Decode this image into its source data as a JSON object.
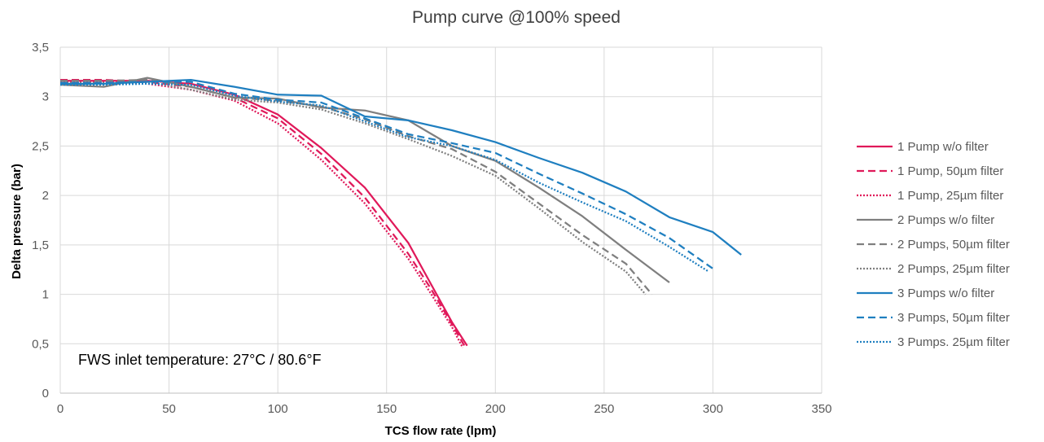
{
  "chart_data": {
    "type": "line",
    "title": "Pump curve @100% speed",
    "xlabel": "TCS flow rate (lpm)",
    "ylabel": "Delta pressure (bar)",
    "xlim": [
      0,
      350
    ],
    "ylim": [
      0,
      3.5
    ],
    "x_ticks": [
      "0",
      "50",
      "100",
      "150",
      "200",
      "250",
      "300",
      "350"
    ],
    "y_ticks": [
      "0",
      "0,5",
      "1",
      "1,5",
      "2",
      "2,5",
      "3",
      "3,5"
    ],
    "grid": true,
    "legend_position": "right",
    "annotation": "FWS inlet temperature: 27°C / 80.6°F",
    "series": [
      {
        "name": "1 Pump w/o filter",
        "color": "#E0195A",
        "style": "solid",
        "points": [
          [
            0,
            3.16
          ],
          [
            20,
            3.16
          ],
          [
            40,
            3.16
          ],
          [
            60,
            3.13
          ],
          [
            80,
            3.02
          ],
          [
            100,
            2.82
          ],
          [
            120,
            2.48
          ],
          [
            140,
            2.08
          ],
          [
            150,
            1.8
          ],
          [
            160,
            1.52
          ],
          [
            170,
            1.12
          ],
          [
            180,
            0.72
          ],
          [
            187,
            0.48
          ]
        ]
      },
      {
        "name": "1 Pump, 50µm filter",
        "color": "#E0195A",
        "style": "dashed",
        "points": [
          [
            0,
            3.17
          ],
          [
            20,
            3.17
          ],
          [
            40,
            3.15
          ],
          [
            60,
            3.1
          ],
          [
            80,
            2.99
          ],
          [
            100,
            2.78
          ],
          [
            120,
            2.42
          ],
          [
            140,
            1.98
          ],
          [
            160,
            1.41
          ],
          [
            170,
            1.07
          ],
          [
            180,
            0.7
          ],
          [
            186,
            0.47
          ]
        ]
      },
      {
        "name": "1 Pump, 25µm filter",
        "color": "#E0195A",
        "style": "dotted",
        "points": [
          [
            0,
            3.15
          ],
          [
            20,
            3.15
          ],
          [
            40,
            3.13
          ],
          [
            60,
            3.07
          ],
          [
            80,
            2.96
          ],
          [
            100,
            2.73
          ],
          [
            120,
            2.36
          ],
          [
            140,
            1.92
          ],
          [
            160,
            1.36
          ],
          [
            170,
            1.02
          ],
          [
            180,
            0.67
          ],
          [
            185,
            0.46
          ]
        ]
      },
      {
        "name": "2 Pumps w/o filter",
        "color": "#7F7F7F",
        "style": "solid",
        "points": [
          [
            0,
            3.12
          ],
          [
            20,
            3.1
          ],
          [
            40,
            3.19
          ],
          [
            60,
            3.1
          ],
          [
            80,
            2.99
          ],
          [
            100,
            2.98
          ],
          [
            120,
            2.89
          ],
          [
            140,
            2.86
          ],
          [
            160,
            2.76
          ],
          [
            180,
            2.5
          ],
          [
            200,
            2.35
          ],
          [
            220,
            2.08
          ],
          [
            240,
            1.79
          ],
          [
            260,
            1.45
          ],
          [
            280,
            1.12
          ]
        ]
      },
      {
        "name": "2 Pumps, 50µm filter",
        "color": "#7F7F7F",
        "style": "dashed",
        "points": [
          [
            0,
            3.16
          ],
          [
            20,
            3.16
          ],
          [
            40,
            3.17
          ],
          [
            60,
            3.1
          ],
          [
            80,
            2.99
          ],
          [
            100,
            2.96
          ],
          [
            120,
            2.9
          ],
          [
            140,
            2.77
          ],
          [
            160,
            2.6
          ],
          [
            180,
            2.47
          ],
          [
            200,
            2.24
          ],
          [
            220,
            1.92
          ],
          [
            240,
            1.6
          ],
          [
            260,
            1.31
          ],
          [
            272,
            1.0
          ]
        ]
      },
      {
        "name": "2 Pumps, 25µm filter",
        "color": "#7F7F7F",
        "style": "dotted",
        "points": [
          [
            0,
            3.14
          ],
          [
            20,
            3.14
          ],
          [
            40,
            3.15
          ],
          [
            60,
            3.07
          ],
          [
            80,
            2.97
          ],
          [
            100,
            2.94
          ],
          [
            120,
            2.87
          ],
          [
            140,
            2.73
          ],
          [
            160,
            2.57
          ],
          [
            180,
            2.4
          ],
          [
            200,
            2.2
          ],
          [
            220,
            1.87
          ],
          [
            240,
            1.53
          ],
          [
            260,
            1.23
          ],
          [
            269,
            1.0
          ]
        ]
      },
      {
        "name": "3 Pumps w/o filter",
        "color": "#1F7FC0",
        "style": "solid",
        "points": [
          [
            0,
            3.13
          ],
          [
            20,
            3.13
          ],
          [
            40,
            3.15
          ],
          [
            60,
            3.17
          ],
          [
            80,
            3.1
          ],
          [
            100,
            3.02
          ],
          [
            120,
            3.01
          ],
          [
            140,
            2.8
          ],
          [
            160,
            2.76
          ],
          [
            180,
            2.66
          ],
          [
            200,
            2.54
          ],
          [
            220,
            2.38
          ],
          [
            240,
            2.23
          ],
          [
            260,
            2.04
          ],
          [
            280,
            1.78
          ],
          [
            300,
            1.63
          ],
          [
            313,
            1.4
          ]
        ]
      },
      {
        "name": "3 Pumps, 50µm filter",
        "color": "#1F7FC0",
        "style": "dashed",
        "points": [
          [
            0,
            3.14
          ],
          [
            20,
            3.14
          ],
          [
            40,
            3.15
          ],
          [
            60,
            3.15
          ],
          [
            80,
            3.03
          ],
          [
            100,
            2.97
          ],
          [
            120,
            2.94
          ],
          [
            140,
            2.78
          ],
          [
            160,
            2.62
          ],
          [
            180,
            2.53
          ],
          [
            200,
            2.43
          ],
          [
            220,
            2.22
          ],
          [
            240,
            2.02
          ],
          [
            260,
            1.81
          ],
          [
            280,
            1.57
          ],
          [
            300,
            1.26
          ]
        ]
      },
      {
        "name": "3 Pumps. 25µm filter",
        "color": "#1F7FC0",
        "style": "dotted",
        "points": [
          [
            0,
            3.12
          ],
          [
            20,
            3.12
          ],
          [
            40,
            3.13
          ],
          [
            60,
            3.12
          ],
          [
            80,
            3.01
          ],
          [
            100,
            2.95
          ],
          [
            120,
            2.91
          ],
          [
            140,
            2.75
          ],
          [
            160,
            2.59
          ],
          [
            180,
            2.5
          ],
          [
            200,
            2.36
          ],
          [
            220,
            2.13
          ],
          [
            240,
            1.93
          ],
          [
            260,
            1.74
          ],
          [
            280,
            1.48
          ],
          [
            298,
            1.23
          ]
        ]
      }
    ]
  }
}
